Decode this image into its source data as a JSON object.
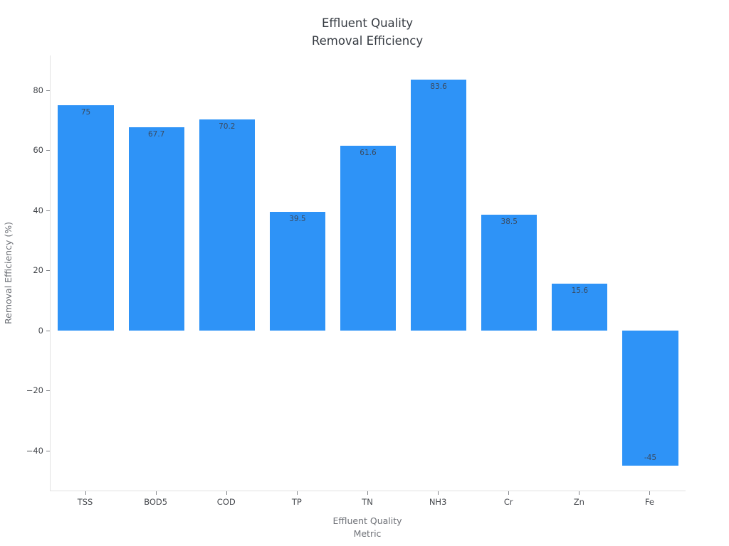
{
  "chart_data": {
    "type": "bar",
    "title_line1": "Effluent Quality",
    "title_line2": "Removal Efficiency",
    "categories": [
      "TSS",
      "BOD5",
      "COD",
      "TP",
      "TN",
      "NH3",
      "Cr",
      "Zn",
      "Fe"
    ],
    "values": [
      75,
      67.7,
      70.2,
      39.5,
      61.6,
      83.6,
      38.5,
      15.6,
      -45
    ],
    "value_labels": [
      "75",
      "67.7",
      "70.2",
      "39.5",
      "61.6",
      "83.6",
      "38.5",
      "15.6",
      "-45"
    ],
    "xlabel_line1": "Effluent Quality",
    "xlabel_line2": "Metric",
    "ylabel": "Removal Efficiency (%)",
    "y_ticks": [
      -40,
      -20,
      0,
      20,
      40,
      60,
      80
    ],
    "y_tick_labels": [
      "−40",
      "−20",
      "0",
      "20",
      "40",
      "60",
      "80"
    ],
    "ylim": [
      -53.3,
      91.6
    ],
    "grid": false,
    "legend": false,
    "colors": {
      "bar": "#2e93f7",
      "title": "#363b42",
      "value_label": "#3a4a5f",
      "tick_label": "#46494e",
      "axis_title": "#6e7177",
      "axis_line": "#e2e2e2",
      "tick_mark": "#82858a",
      "background": "#ffffff"
    }
  }
}
